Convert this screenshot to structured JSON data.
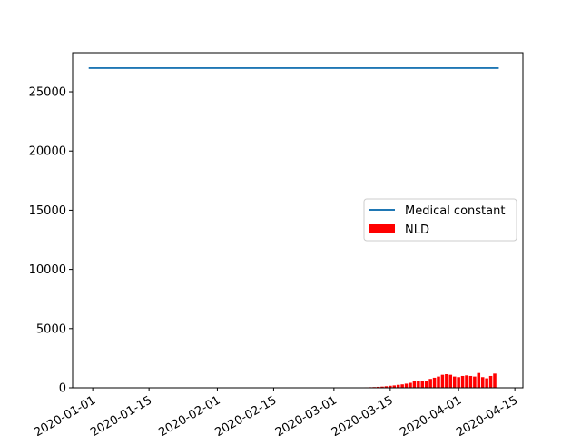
{
  "chart_data": {
    "type": "bar",
    "xaxis": {
      "type": "date",
      "range": [
        "2019-12-27",
        "2020-04-17"
      ],
      "ticks": [
        "2020-01-01",
        "2020-01-15",
        "2020-02-01",
        "2020-02-15",
        "2020-03-01",
        "2020-03-15",
        "2020-04-01",
        "2020-04-15"
      ]
    },
    "yaxis": {
      "range": [
        0,
        28300
      ],
      "ticks": [
        0,
        5000,
        10000,
        15000,
        20000,
        25000
      ]
    },
    "grid": false,
    "legend": {
      "position": "center-right"
    },
    "series": [
      {
        "name": "Medical constant",
        "type": "line",
        "color": "#1f77b4",
        "x": [
          "2019-12-31",
          "2020-04-11"
        ],
        "values": [
          27000,
          27000
        ]
      },
      {
        "name": "NLD",
        "type": "bar",
        "color": "#ff0000",
        "x": [
          "2020-03-07",
          "2020-03-08",
          "2020-03-09",
          "2020-03-10",
          "2020-03-11",
          "2020-03-12",
          "2020-03-13",
          "2020-03-14",
          "2020-03-15",
          "2020-03-16",
          "2020-03-17",
          "2020-03-18",
          "2020-03-19",
          "2020-03-20",
          "2020-03-21",
          "2020-03-22",
          "2020-03-23",
          "2020-03-24",
          "2020-03-25",
          "2020-03-26",
          "2020-03-27",
          "2020-03-28",
          "2020-03-29",
          "2020-03-30",
          "2020-03-31",
          "2020-04-01",
          "2020-04-02",
          "2020-04-03",
          "2020-04-04",
          "2020-04-05",
          "2020-04-06",
          "2020-04-07",
          "2020-04-08",
          "2020-04-09",
          "2020-04-10"
        ],
        "values": [
          20,
          30,
          40,
          50,
          60,
          80,
          100,
          130,
          170,
          200,
          250,
          290,
          350,
          420,
          540,
          600,
          550,
          580,
          750,
          850,
          950,
          1100,
          1150,
          1100,
          950,
          900,
          1000,
          1050,
          1000,
          950,
          1250,
          900,
          800,
          1000,
          1200
        ]
      }
    ]
  }
}
